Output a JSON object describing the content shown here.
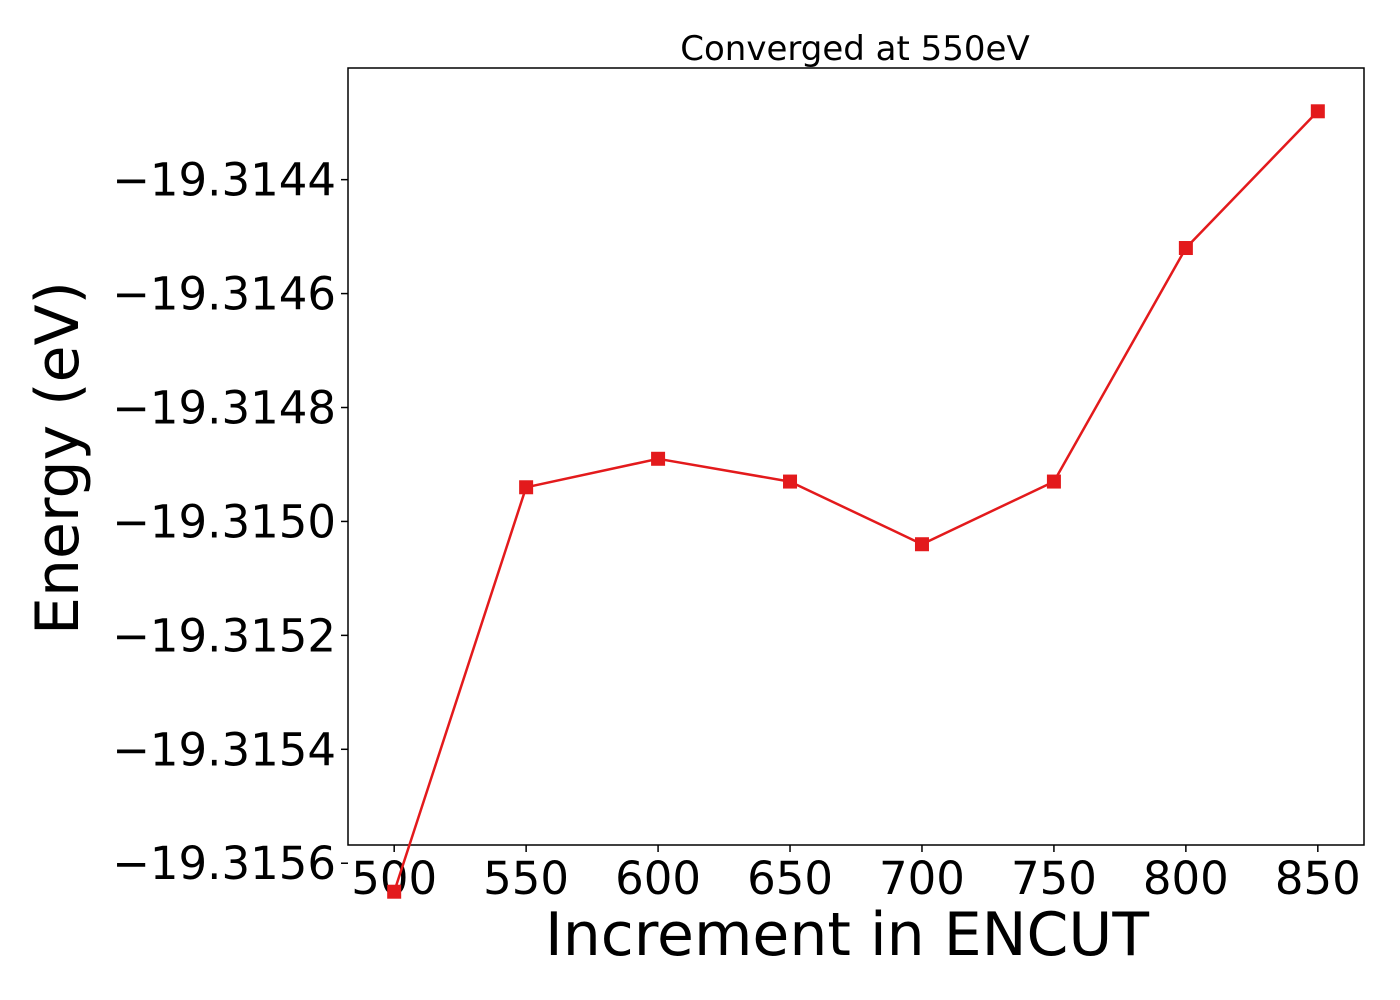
{
  "chart_data": {
    "type": "line",
    "title": "Converged at 550eV",
    "xlabel": "Increment in ENCUT",
    "ylabel": "Energy (eV)",
    "x": [
      500,
      550,
      600,
      650,
      700,
      750,
      800,
      850
    ],
    "series": [
      {
        "values": [
          -19.31565,
          -19.31494,
          -19.31489,
          -19.31493,
          -19.31504,
          -19.31493,
          -19.31452,
          -19.31428
        ],
        "color": "#e31a1c",
        "marker": "square"
      }
    ],
    "xticks": [
      500,
      550,
      600,
      650,
      700,
      750,
      800,
      850
    ],
    "xtick_labels": [
      "500",
      "550",
      "600",
      "650",
      "700",
      "750",
      "800",
      "850"
    ],
    "yticks": [
      -19.3156,
      -19.3154,
      -19.3152,
      -19.315,
      -19.3148,
      -19.3146,
      -19.3144
    ],
    "ytick_labels": [
      "−19.3156",
      "−19.3154",
      "−19.3152",
      "−19.3150",
      "−19.3148",
      "−19.3146",
      "−19.3144"
    ],
    "xlim": [
      482.5,
      867.5
    ],
    "ylim": [
      -19.315568,
      -19.314204
    ],
    "grid": false,
    "legend": false
  }
}
